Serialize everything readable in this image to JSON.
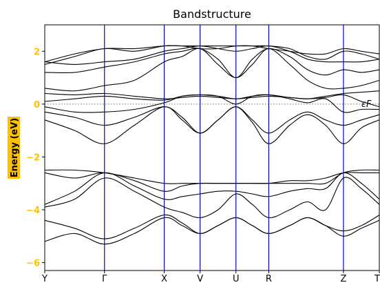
{
  "chart_data": {
    "type": "line",
    "title": "Bandstructure",
    "xlabel": "",
    "ylabel": "Energy (eV)",
    "ylim": [
      -6.3,
      3.0
    ],
    "y_ticks": [
      {
        "value": 2,
        "label": "2"
      },
      {
        "value": 0,
        "label": "0"
      },
      {
        "value": -2,
        "label": "−2"
      },
      {
        "value": -4,
        "label": "−4"
      },
      {
        "value": -6,
        "label": "−6"
      }
    ],
    "kpath": {
      "labels": [
        "Y",
        "Γ",
        "X",
        "V",
        "U",
        "R",
        "Z",
        "T"
      ],
      "positions": [
        0,
        1,
        2,
        2.6,
        3.2,
        3.75,
        5,
        5.6
      ]
    },
    "fermi_level": {
      "value": 0,
      "label": "εF"
    },
    "colors": {
      "bands": "#000000",
      "kpoint_lines": "#0000cc",
      "fermi": "#2ca02c",
      "ylabel_highlight": "#ffc000",
      "ylabel_text": "#000000"
    },
    "band_sample_k": [
      0,
      0.5,
      1,
      1.5,
      2,
      2.3,
      2.6,
      2.9,
      3.2,
      3.475,
      3.75,
      4.1,
      4.4,
      4.7,
      5,
      5.3,
      5.6
    ],
    "series": [
      {
        "values": [
          -5.2,
          -4.9,
          -5.3,
          -4.9,
          -4.3,
          -4.6,
          -4.9,
          -4.6,
          -4.3,
          -4.6,
          -4.9,
          -4.6,
          -4.3,
          -4.6,
          -5.0,
          -4.7,
          -4.4
        ]
      },
      {
        "values": [
          -4.4,
          -4.7,
          -5.1,
          -4.7,
          -4.2,
          -4.5,
          -4.9,
          -4.6,
          -4.3,
          -4.6,
          -4.9,
          -4.6,
          -4.3,
          -4.6,
          -4.8,
          -4.6,
          -4.2
        ]
      },
      {
        "values": [
          -3.9,
          -3.6,
          -2.8,
          -3.3,
          -3.9,
          -4.1,
          -4.3,
          -4.0,
          -3.4,
          -3.8,
          -4.3,
          -4.0,
          -3.7,
          -4.0,
          -2.8,
          -3.2,
          -3.8
        ]
      },
      {
        "values": [
          -3.8,
          -3.3,
          -2.6,
          -3.1,
          -3.6,
          -3.5,
          -3.4,
          -3.3,
          -3.3,
          -3.4,
          -3.5,
          -3.3,
          -3.2,
          -3.2,
          -2.6,
          -3.0,
          -3.6
        ]
      },
      {
        "values": [
          -2.6,
          -2.8,
          -2.6,
          -2.9,
          -3.3,
          -3.1,
          -3.0,
          -3.0,
          -3.0,
          -3.0,
          -3.0,
          -2.9,
          -2.9,
          -2.8,
          -2.6,
          -2.6,
          -2.6
        ]
      },
      {
        "values": [
          -2.5,
          -2.5,
          -2.6,
          -2.8,
          -3.0,
          -3.0,
          -3.0,
          -3.0,
          -3.0,
          -3.0,
          -3.0,
          -3.0,
          -3.0,
          -3.0,
          -2.6,
          -2.5,
          -2.5
        ]
      },
      {
        "values": [
          -0.6,
          -1.0,
          -1.5,
          -0.8,
          -0.1,
          -0.6,
          -1.1,
          -0.6,
          -0.1,
          -0.7,
          -1.5,
          -0.8,
          -0.4,
          -0.8,
          -1.5,
          -0.9,
          -0.6
        ]
      },
      {
        "values": [
          -0.3,
          -0.5,
          -0.8,
          -0.5,
          -0.1,
          -0.5,
          -1.1,
          -0.6,
          -0.1,
          -0.6,
          -1.1,
          -0.6,
          -0.3,
          -0.6,
          -0.8,
          -0.6,
          -0.4
        ]
      },
      {
        "values": [
          -0.1,
          -0.3,
          -0.3,
          -0.2,
          0.05,
          0.3,
          0.35,
          0.3,
          0.0,
          0.3,
          0.35,
          0.2,
          0.05,
          0.2,
          -0.3,
          -0.2,
          -0.2
        ]
      },
      {
        "values": [
          0.1,
          0.2,
          0.3,
          0.2,
          0.15,
          0.3,
          0.35,
          0.3,
          0.2,
          0.3,
          0.35,
          0.25,
          0.2,
          0.25,
          0.35,
          0.1,
          -0.1
        ]
      },
      {
        "values": [
          0.4,
          0.35,
          0.4,
          0.3,
          0.2,
          0.25,
          0.3,
          0.25,
          0.2,
          0.25,
          0.3,
          0.25,
          0.2,
          0.3,
          0.4,
          0.45,
          0.5
        ]
      },
      {
        "values": [
          0.6,
          0.5,
          0.7,
          0.9,
          1.6,
          1.8,
          2.1,
          1.5,
          1.0,
          1.5,
          2.1,
          1.5,
          0.9,
          0.6,
          0.6,
          0.7,
          0.9
        ]
      },
      {
        "values": [
          1.2,
          1.2,
          1.4,
          1.6,
          1.9,
          2.0,
          2.1,
          1.7,
          1.0,
          1.7,
          2.1,
          1.8,
          1.3,
          1.1,
          1.3,
          1.2,
          1.3
        ]
      },
      {
        "values": [
          1.6,
          1.5,
          1.6,
          1.7,
          2.0,
          2.1,
          2.2,
          2.1,
          2.0,
          2.1,
          2.2,
          2.0,
          1.7,
          1.6,
          1.6,
          1.6,
          1.7
        ]
      },
      {
        "values": [
          1.5,
          1.8,
          2.1,
          2.0,
          2.2,
          2.2,
          2.2,
          2.2,
          2.2,
          2.2,
          2.2,
          2.1,
          1.8,
          1.7,
          2.0,
          1.9,
          1.7
        ]
      },
      {
        "values": [
          1.6,
          1.9,
          2.1,
          2.1,
          2.2,
          2.2,
          2.1,
          2.1,
          2.2,
          2.2,
          2.1,
          2.0,
          1.9,
          1.9,
          2.1,
          2.0,
          1.9
        ]
      }
    ]
  }
}
